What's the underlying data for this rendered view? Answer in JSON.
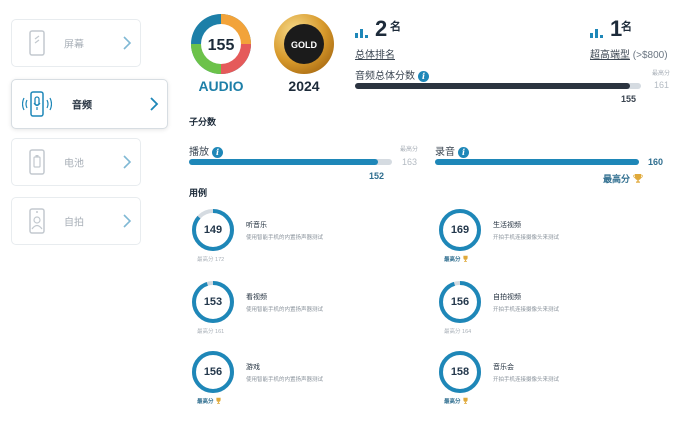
{
  "nav": {
    "items": [
      {
        "label": "屏幕",
        "icon": "phone-screen-icon",
        "active": false
      },
      {
        "label": "音频",
        "icon": "phone-audio-icon",
        "active": true
      },
      {
        "label": "电池",
        "icon": "phone-battery-icon",
        "active": false
      },
      {
        "label": "自拍",
        "icon": "phone-selfie-icon",
        "active": false
      }
    ]
  },
  "header": {
    "audio_badge": {
      "score": "155",
      "caption": "AUDIO"
    },
    "gold_badge": {
      "label": "GOLD",
      "year": "2024"
    }
  },
  "rankings": {
    "overall": {
      "rank": "2",
      "suffix": "名",
      "link": "总体排名"
    },
    "premium": {
      "rank": "1",
      "suffix": "名",
      "link": "超高端型",
      "extra": "(>$800)"
    }
  },
  "overall_score": {
    "title": "音频总体分数",
    "best_label": "最高分",
    "best_value": "161",
    "value_label": "155",
    "fraction": 0.963
  },
  "sub_scores": {
    "title": "子分数",
    "playback": {
      "title": "播放",
      "best_label": "最高分",
      "best_value": "163",
      "value_label": "152",
      "fraction": 0.933
    },
    "recording": {
      "title": "录音",
      "value_label": "160",
      "best_text": "最高分",
      "fraction": 1.0
    }
  },
  "use_cases": {
    "title": "用例",
    "items": [
      {
        "score": "149",
        "fraction": 0.866,
        "name": "听音乐",
        "desc": "使用智能手机的内置扬声器测试",
        "foot": "最高分 172",
        "best": false
      },
      {
        "score": "169",
        "fraction": 1.0,
        "name": "生活视频",
        "desc": "开拍手机连接摄像头来测试",
        "foot": "最高分",
        "best": true
      },
      {
        "score": "153",
        "fraction": 0.95,
        "name": "看视频",
        "desc": "使用智能手机的内置扬声器测试",
        "foot": "最高分 161",
        "best": false
      },
      {
        "score": "156",
        "fraction": 0.951,
        "name": "自拍视频",
        "desc": "开拍手机连接摄像头来测试",
        "foot": "最高分 164",
        "best": false
      },
      {
        "score": "156",
        "fraction": 1.0,
        "name": "游戏",
        "desc": "使用智能手机的内置扬声器测试",
        "foot": "最高分",
        "best": true
      },
      {
        "score": "158",
        "fraction": 1.0,
        "name": "音乐会",
        "desc": "开拍手机连接摄像头来测试",
        "foot": "最高分",
        "best": true
      }
    ]
  },
  "colors": {
    "accent": "#1e87b8",
    "dark_bar": "#2b3440",
    "track": "#d5dbe1",
    "gold": "#e0a93a",
    "brand_teal": "#1d7fa8"
  }
}
